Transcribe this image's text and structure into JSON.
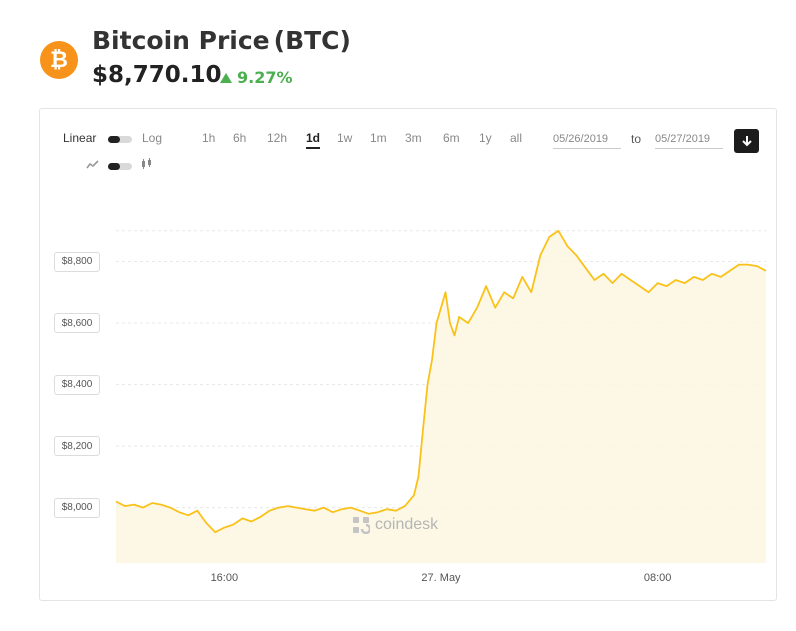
{
  "header": {
    "logo_glyph": "₿",
    "title": "Bitcoin Price",
    "ticker": "(BTC)",
    "price": "$8,770.10",
    "change": "9.27%",
    "change_color": "#4caf50",
    "accent_color": "#f7931a"
  },
  "controls": {
    "scale_linear": "Linear",
    "scale_log": "Log",
    "ranges": [
      "1h",
      "6h",
      "12h",
      "1d",
      "1w",
      "1m",
      "3m",
      "6m",
      "1y",
      "all"
    ],
    "active_range": "1d",
    "date_from": "05/26/2019",
    "date_to": "05/27/2019",
    "to_label": "to",
    "line_icon": "line-chart-icon",
    "candle_icon": "candlestick-icon",
    "download_icon": "download-arrow-icon"
  },
  "chart_data": {
    "type": "area",
    "title": "",
    "xlabel": "",
    "ylabel": "",
    "line_color": "#f9c21a",
    "fill_color": "#fdf6e0",
    "ylim": [
      7820,
      9000
    ],
    "yticks": [
      8000,
      8200,
      8400,
      8600,
      8800
    ],
    "ytick_labels": [
      "$8,000",
      "$8,200",
      "$8,400",
      "$8,600",
      "$8,800"
    ],
    "xticks": [
      "2019-05-26T16:00",
      "2019-05-27T00:00",
      "2019-05-27T08:00"
    ],
    "xtick_labels": [
      "16:00",
      "27. May",
      "08:00"
    ],
    "xlim": [
      "2019-05-26T12:00",
      "2019-05-27T12:00"
    ],
    "series": [
      {
        "x": [
          "2019-05-26T12:00",
          "2019-05-26T12:20",
          "2019-05-26T12:40",
          "2019-05-26T13:00",
          "2019-05-26T13:20",
          "2019-05-26T13:40",
          "2019-05-26T14:00",
          "2019-05-26T14:20",
          "2019-05-26T14:40",
          "2019-05-26T15:00",
          "2019-05-26T15:20",
          "2019-05-26T15:40",
          "2019-05-26T16:00",
          "2019-05-26T16:20",
          "2019-05-26T16:40",
          "2019-05-26T17:00",
          "2019-05-26T17:20",
          "2019-05-26T17:40",
          "2019-05-26T18:00",
          "2019-05-26T18:20",
          "2019-05-26T18:40",
          "2019-05-26T19:00",
          "2019-05-26T19:20",
          "2019-05-26T19:40",
          "2019-05-26T20:00",
          "2019-05-26T20:20",
          "2019-05-26T20:40",
          "2019-05-26T21:00",
          "2019-05-26T21:20",
          "2019-05-26T21:40",
          "2019-05-26T22:00",
          "2019-05-26T22:20",
          "2019-05-26T22:40",
          "2019-05-26T23:00",
          "2019-05-26T23:10",
          "2019-05-26T23:20",
          "2019-05-26T23:30",
          "2019-05-26T23:40",
          "2019-05-26T23:50",
          "2019-05-27T00:00",
          "2019-05-27T00:10",
          "2019-05-27T00:20",
          "2019-05-27T00:30",
          "2019-05-27T00:40",
          "2019-05-27T01:00",
          "2019-05-27T01:20",
          "2019-05-27T01:40",
          "2019-05-27T02:00",
          "2019-05-27T02:20",
          "2019-05-27T02:40",
          "2019-05-27T03:00",
          "2019-05-27T03:20",
          "2019-05-27T03:40",
          "2019-05-27T04:00",
          "2019-05-27T04:20",
          "2019-05-27T04:40",
          "2019-05-27T05:00",
          "2019-05-27T05:20",
          "2019-05-27T05:40",
          "2019-05-27T06:00",
          "2019-05-27T06:20",
          "2019-05-27T06:40",
          "2019-05-27T07:00",
          "2019-05-27T07:20",
          "2019-05-27T07:40",
          "2019-05-27T08:00",
          "2019-05-27T08:20",
          "2019-05-27T08:40",
          "2019-05-27T09:00",
          "2019-05-27T09:20",
          "2019-05-27T09:40",
          "2019-05-27T10:00",
          "2019-05-27T10:20",
          "2019-05-27T10:40",
          "2019-05-27T11:00",
          "2019-05-27T11:20",
          "2019-05-27T11:40",
          "2019-05-27T12:00"
        ],
        "values": [
          8020,
          8005,
          8010,
          8000,
          8015,
          8010,
          8000,
          7985,
          7975,
          7990,
          7950,
          7920,
          7935,
          7945,
          7965,
          7955,
          7970,
          7990,
          8000,
          8005,
          8000,
          7995,
          7990,
          8000,
          7985,
          7995,
          8000,
          7990,
          7980,
          7985,
          7995,
          7990,
          8005,
          8040,
          8100,
          8250,
          8400,
          8480,
          8600,
          8650,
          8700,
          8600,
          8560,
          8620,
          8600,
          8650,
          8720,
          8650,
          8700,
          8680,
          8750,
          8700,
          8820,
          8880,
          8900,
          8850,
          8820,
          8780,
          8740,
          8760,
          8730,
          8760,
          8740,
          8720,
          8700,
          8730,
          8720,
          8740,
          8730,
          8750,
          8740,
          8760,
          8750,
          8770,
          8790,
          8790,
          8785,
          8770
        ]
      }
    ]
  }
}
